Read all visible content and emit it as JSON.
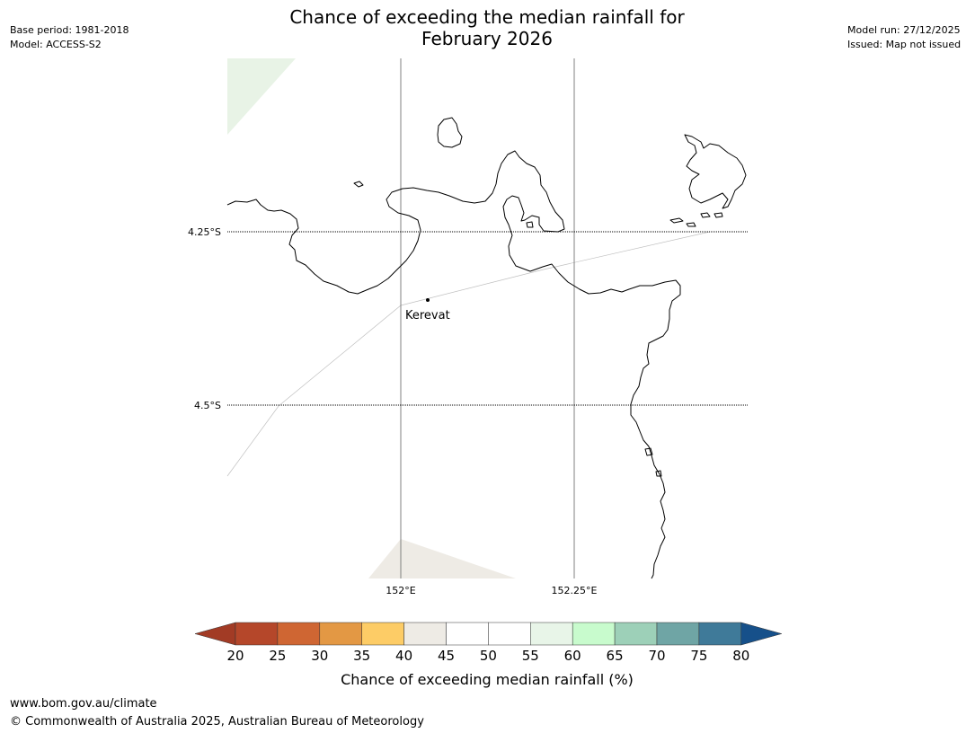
{
  "header": {
    "title_line1": "Chance of exceeding the median rainfall for",
    "title_line2": "February 2026",
    "base_period": "Base period: 1981-2018",
    "model": "Model: ACCESS-S2",
    "model_run": "Model run: 27/12/2025",
    "issued": "Issued: Map not issued"
  },
  "map": {
    "latitude_labels": [
      "4.25°S",
      "4.5°S"
    ],
    "longitude_labels": [
      "152°E",
      "152.25°E"
    ],
    "place": {
      "name": "Kerevat"
    },
    "colors": {
      "coastline": "#000000",
      "graticule": "#000000",
      "meridian": "#808080",
      "boundary": "#c0c0c0",
      "region_55_60": "#e8f3e6",
      "region_40_45": "#eeebe5"
    }
  },
  "legend": {
    "ticks": [
      "20",
      "25",
      "30",
      "35",
      "40",
      "45",
      "50",
      "55",
      "60",
      "65",
      "70",
      "75",
      "80"
    ],
    "colors": [
      "#a23b25",
      "#b5472a",
      "#cf6633",
      "#e39844",
      "#fdcc66",
      "#eeebe5",
      "#ffffff",
      "#ffffff",
      "#e8f5e8",
      "#c8fbcd",
      "#9dd0b8",
      "#6fa5a5",
      "#3f7a99",
      "#16508a"
    ],
    "label": "Chance of exceeding median rainfall (%)"
  },
  "footer": {
    "url": "www.bom.gov.au/climate",
    "copyright": "© Commonwealth of Australia 2025, Australian Bureau of Meteorology"
  }
}
